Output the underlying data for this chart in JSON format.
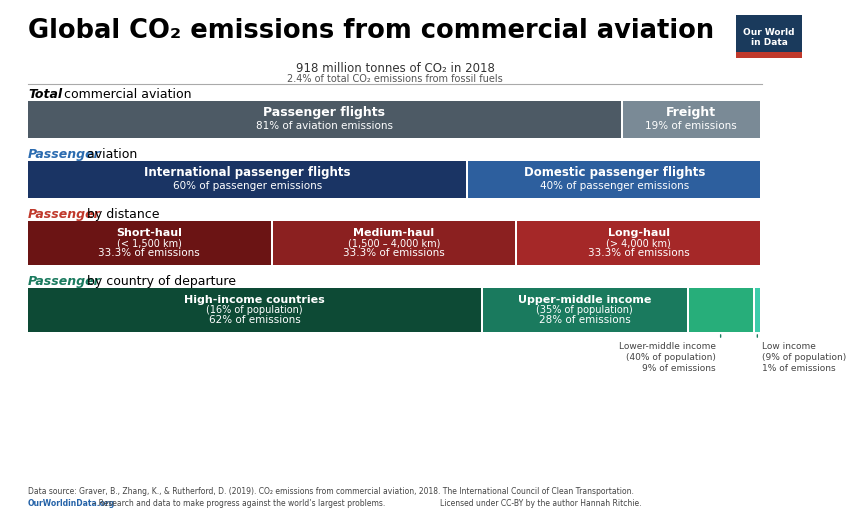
{
  "title": "Global CO₂ emissions from commercial aviation",
  "subtitle_line1": "918 million tonnes of CO₂ in 2018",
  "subtitle_line2": "2.4% of total CO₂ emissions from fossil fuels",
  "bg_color": "#ffffff",
  "owid_box_bg": "#1a3a5c",
  "owid_box_red": "#c0392b",
  "row1_label_italic": "Total",
  "row1_label_rest": " commercial aviation",
  "row1_bars": [
    {
      "label_line1": "Passenger flights",
      "label_line2": "81% of aviation emissions",
      "value": 81,
      "color": "#4d5a65"
    },
    {
      "label_line1": "Freight",
      "label_line2": "19% of emissions",
      "value": 19,
      "color": "#7a8a96"
    }
  ],
  "row2_label_italic": "Passenger",
  "row2_label_rest": " aviation",
  "row2_label_color": "#2b6cb0",
  "row2_bars": [
    {
      "label_line1": "International passenger flights",
      "label_line2": "60% of passenger emissions",
      "value": 60,
      "color": "#1a3464"
    },
    {
      "label_line1": "Domestic passenger flights",
      "label_line2": "40% of passenger emissions",
      "value": 40,
      "color": "#2d5f9e"
    }
  ],
  "row3_label_italic": "Passenger",
  "row3_label_rest": " by distance",
  "row3_label_color": "#c0392b",
  "row3_bars": [
    {
      "label_line1": "Short-haul",
      "label_line2": "(< 1,500 km)",
      "label_line3": "33.3% of emissions",
      "value": 33.33,
      "color": "#6b1414"
    },
    {
      "label_line1": "Medium-haul",
      "label_line2": "(1,500 – 4,000 km)",
      "label_line3": "33.3% of emissions",
      "value": 33.33,
      "color": "#8b2020"
    },
    {
      "label_line1": "Long-haul",
      "label_line2": "(> 4,000 km)",
      "label_line3": "33.3% of emissions",
      "value": 33.33,
      "color": "#a52828"
    }
  ],
  "row4_label_italic": "Passenger",
  "row4_label_rest": " by country of departure",
  "row4_label_color": "#1a7a5e",
  "row4_bars": [
    {
      "label_line1": "High-income countries",
      "label_line2": "(16% of population)",
      "label_line3": "62% of emissions",
      "value": 62,
      "color": "#0d4a35"
    },
    {
      "label_line1": "Upper-middle income",
      "label_line2": "(35% of population)",
      "label_line3": "28% of emissions",
      "value": 28,
      "color": "#1a7a5e"
    },
    {
      "label_line1": "",
      "label_line2": "",
      "label_line3": "",
      "value": 9,
      "color": "#27ae7a"
    },
    {
      "label_line1": "",
      "label_line2": "",
      "label_line3": "",
      "value": 1,
      "color": "#3dccaa"
    }
  ],
  "annot2_line1": "Lower-middle income",
  "annot2_line2": "(40% of population)",
  "annot2_line3": "9% of emissions",
  "annot3_line1": "Low income",
  "annot3_line2": "(9% of population)",
  "annot3_line3": "1% of emissions",
  "annot_color": "#1a7a5e",
  "footer_line1": "Data source: Graver, B., Zhang, K., & Rutherford, D. (2019). CO₂ emissions from commercial aviation, 2018. The International Council of Clean Transportation.",
  "footer_owid_link": "OurWorldinData.org",
  "footer_owid_rest": " – Research and data to make progress against the world’s largest problems.",
  "footer_license": "Licensed under CC-BY by the author Hannah Ritchie."
}
